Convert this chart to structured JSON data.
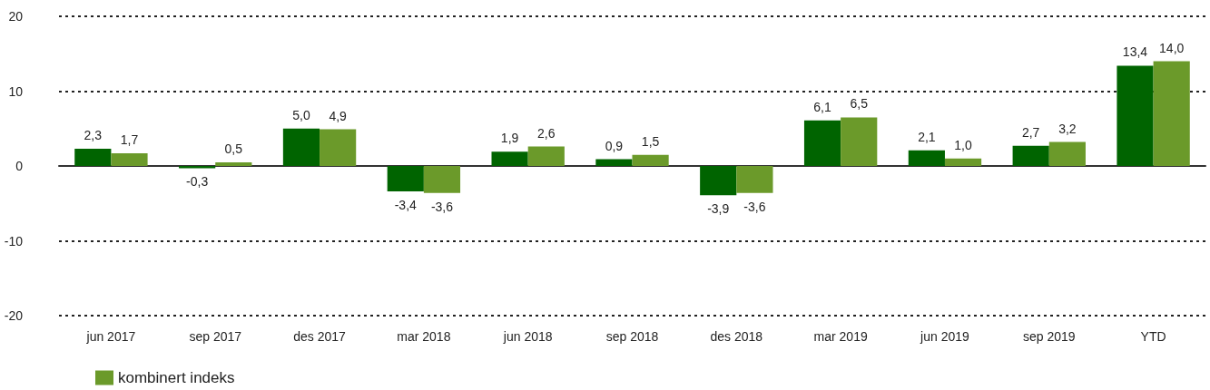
{
  "chart_data": {
    "type": "bar",
    "categories": [
      "jun 2017",
      "sep 2017",
      "des 2017",
      "mar 2018",
      "jun 2018",
      "sep 2018",
      "des 2018",
      "mar 2019",
      "jun 2019",
      "sep 2019",
      "YTD"
    ],
    "series": [
      {
        "color": "#006400",
        "values": [
          2.3,
          -0.3,
          5.0,
          -3.4,
          1.9,
          0.9,
          -3.9,
          6.1,
          2.1,
          2.7,
          13.4
        ],
        "value_labels": [
          "2,3",
          "-0,3",
          "5,0",
          "-3,4",
          "1,9",
          "0,9",
          "-3,9",
          "6,1",
          "2,1",
          "2,7",
          "13,4"
        ]
      },
      {
        "name": "kombinert indeks",
        "color": "#6b9a2a",
        "values": [
          1.7,
          0.5,
          4.9,
          -3.6,
          2.6,
          1.5,
          -3.6,
          6.5,
          1.0,
          3.2,
          14.0
        ],
        "value_labels": [
          "1,7",
          "0,5",
          "4,9",
          "-3,6",
          "2,6",
          "1,5",
          "-3,6",
          "6,5",
          "1,0",
          "3,2",
          "14,0"
        ]
      }
    ],
    "ylim": [
      -20,
      20
    ],
    "yticks": [
      -20,
      -10,
      0,
      10,
      20
    ],
    "grid": "y",
    "legend": "bottom"
  }
}
